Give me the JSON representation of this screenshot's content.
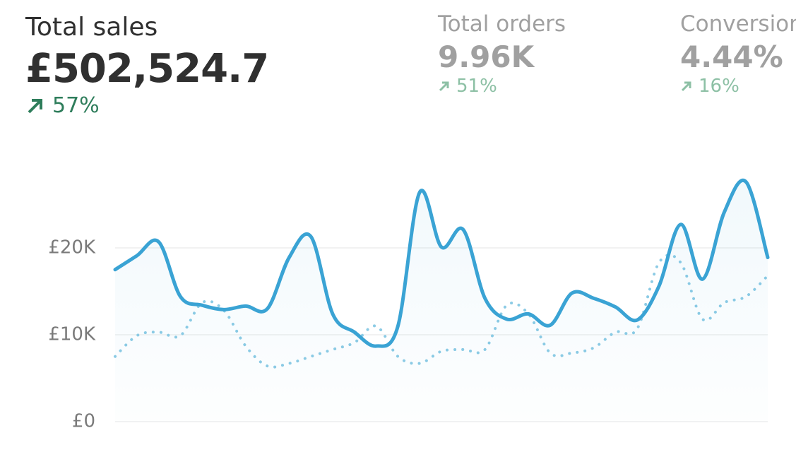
{
  "metrics": [
    {
      "label": "Total sales",
      "value": "£502,524.7",
      "change": "57%"
    },
    {
      "label": "Total orders",
      "value": "9.96K",
      "change": "51%"
    },
    {
      "label": "Conversion",
      "value": "4.44%",
      "change": "16%"
    }
  ],
  "chart_data": {
    "type": "line",
    "series": [
      {
        "color": "#3aa3d4",
        "style": "solid",
        "values": [
          17500,
          19100,
          20700,
          14400,
          13400,
          12900,
          13300,
          13000,
          18900,
          21300,
          12400,
          10300,
          8700,
          11000,
          26400,
          20100,
          22100,
          14200,
          11800,
          12400,
          11100,
          14800,
          14200,
          13200,
          11700,
          15600,
          22700,
          16400,
          24100,
          27600,
          18900
        ]
      },
      {
        "color": "#8ccbe5",
        "style": "dotted",
        "values": [
          7500,
          9900,
          10300,
          9900,
          13700,
          12800,
          8700,
          6400,
          6700,
          7500,
          8300,
          9100,
          11000,
          7500,
          6700,
          8100,
          8300,
          8300,
          13400,
          12400,
          7900,
          7900,
          8500,
          10300,
          10700,
          18300,
          18300,
          11800,
          13700,
          14400,
          16800
        ]
      }
    ],
    "ylim": [
      0,
      30000
    ],
    "yticks": [
      {
        "value": 0,
        "label": "£0"
      },
      {
        "value": 10000,
        "label": "£10K"
      },
      {
        "value": 20000,
        "label": "£20K"
      }
    ],
    "grid": true
  }
}
